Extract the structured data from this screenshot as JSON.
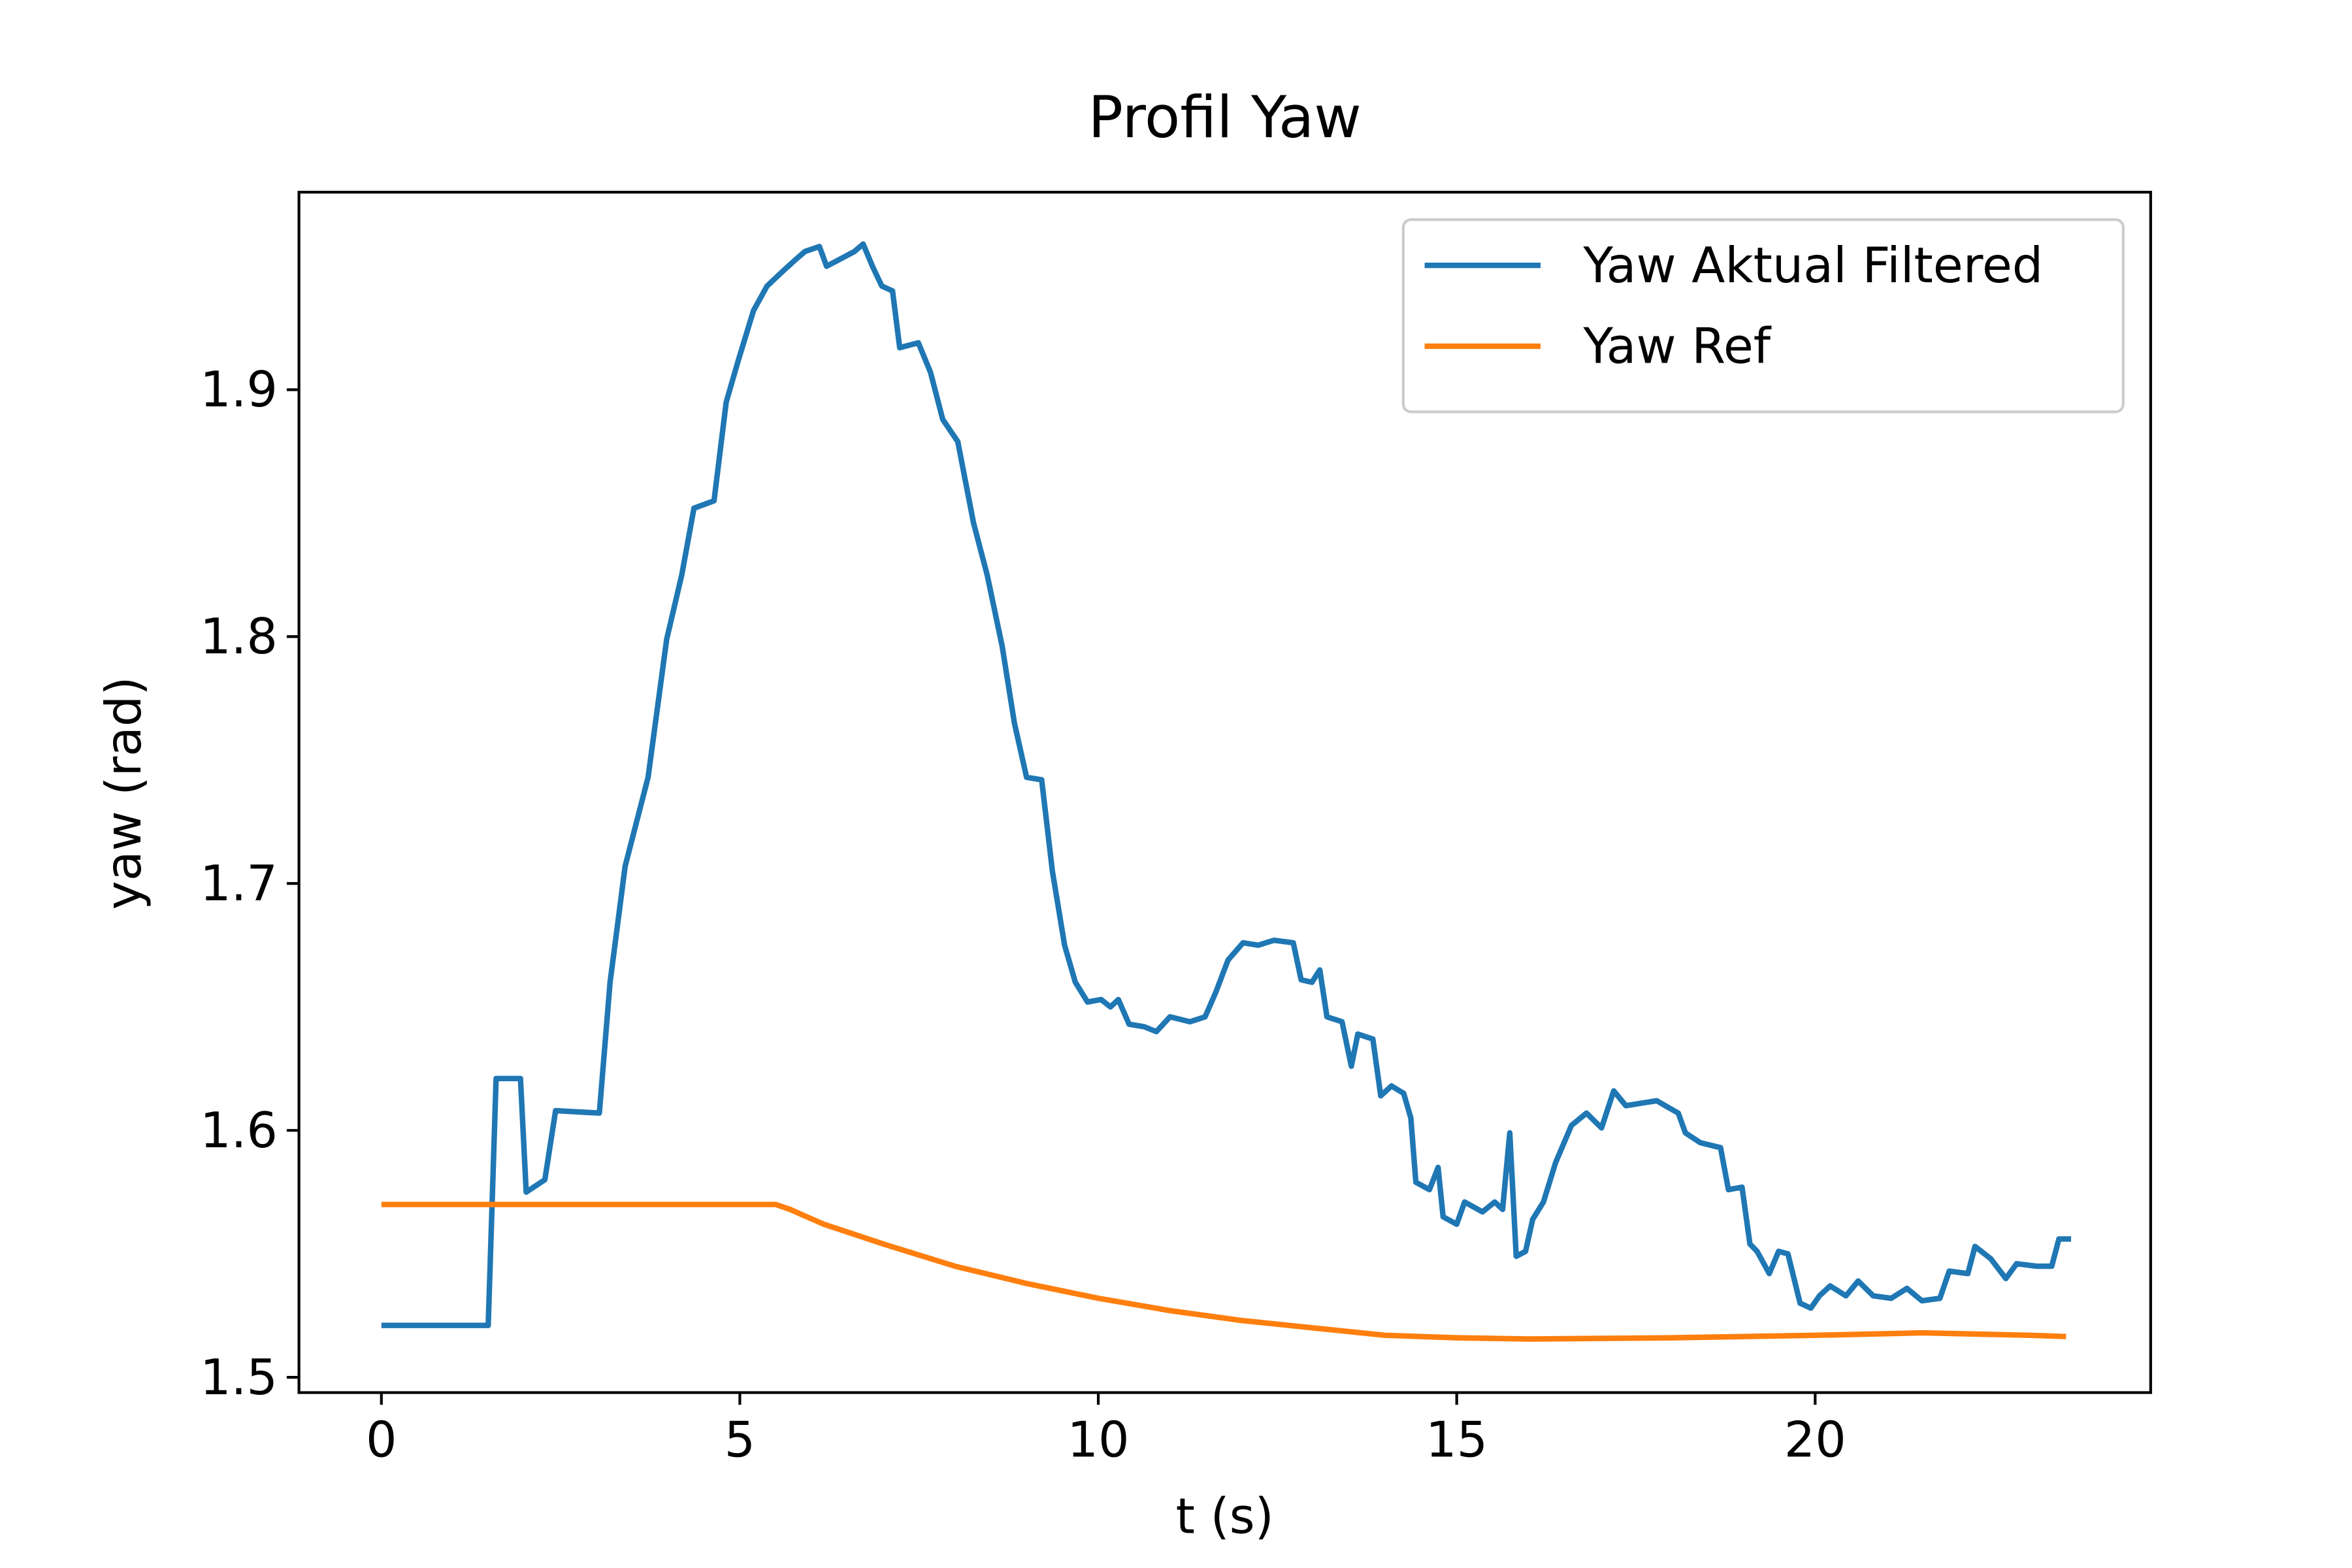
{
  "chart_data": {
    "type": "line",
    "title": "Profil Yaw",
    "xlabel": "t (s)",
    "ylabel": "yaw (rad)",
    "xlim": [
      -1.15,
      24.68
    ],
    "ylim": [
      1.4938,
      1.98
    ],
    "xticks": [
      0,
      5,
      10,
      15,
      20
    ],
    "yticks": [
      1.5,
      1.6,
      1.7,
      1.8,
      1.9
    ],
    "legend": "upper right",
    "series": [
      {
        "name": "Yaw Aktual Filtered",
        "color": "#1f77b4",
        "x": [
          0,
          1.49,
          1.6,
          1.94,
          2.02,
          2.28,
          2.43,
          3.04,
          3.19,
          3.4,
          3.72,
          3.98,
          4.19,
          4.36,
          4.64,
          4.81,
          4.98,
          5.19,
          5.38,
          5.6,
          5.79,
          5.91,
          6.11,
          6.21,
          6.6,
          6.72,
          6.85,
          6.98,
          7.13,
          7.23,
          7.49,
          7.66,
          7.83,
          8.04,
          8.26,
          8.45,
          8.66,
          8.83,
          9.0,
          9.21,
          9.36,
          9.53,
          9.68,
          9.85,
          10.04,
          10.17,
          10.28,
          10.43,
          10.64,
          10.81,
          11.0,
          11.28,
          11.49,
          11.64,
          11.81,
          12.02,
          12.23,
          12.45,
          12.72,
          12.83,
          12.98,
          13.09,
          13.19,
          13.4,
          13.53,
          13.62,
          13.83,
          13.94,
          14.09,
          14.26,
          14.36,
          14.43,
          14.62,
          14.74,
          14.81,
          15.0,
          15.11,
          15.36,
          15.53,
          15.64,
          15.74,
          15.83,
          15.96,
          16.06,
          16.21,
          16.38,
          16.6,
          16.81,
          17.02,
          17.19,
          17.36,
          17.57,
          17.79,
          18.09,
          18.19,
          18.4,
          18.68,
          18.79,
          18.98,
          19.09,
          19.19,
          19.36,
          19.49,
          19.62,
          19.79,
          19.94,
          20.06,
          20.21,
          20.43,
          20.6,
          20.81,
          21.06,
          21.28,
          21.49,
          21.74,
          21.87,
          22.13,
          22.23,
          22.45,
          22.66,
          22.81,
          23.09,
          23.3,
          23.4,
          23.57
        ],
        "values": [
          1.521,
          1.521,
          1.621,
          1.621,
          1.575,
          1.58,
          1.608,
          1.607,
          1.66,
          1.707,
          1.743,
          1.799,
          1.825,
          1.852,
          1.855,
          1.895,
          1.912,
          1.932,
          1.942,
          1.948,
          1.953,
          1.956,
          1.958,
          1.95,
          1.956,
          1.959,
          1.95,
          1.942,
          1.94,
          1.917,
          1.919,
          1.907,
          1.888,
          1.879,
          1.846,
          1.825,
          1.796,
          1.765,
          1.743,
          1.742,
          1.705,
          1.675,
          1.66,
          1.652,
          1.653,
          1.65,
          1.653,
          1.643,
          1.642,
          1.64,
          1.646,
          1.644,
          1.646,
          1.656,
          1.669,
          1.676,
          1.675,
          1.677,
          1.676,
          1.661,
          1.66,
          1.665,
          1.646,
          1.644,
          1.626,
          1.639,
          1.637,
          1.614,
          1.618,
          1.615,
          1.605,
          1.579,
          1.576,
          1.585,
          1.565,
          1.562,
          1.571,
          1.567,
          1.571,
          1.568,
          1.599,
          1.549,
          1.551,
          1.564,
          1.571,
          1.587,
          1.602,
          1.607,
          1.601,
          1.616,
          1.61,
          1.611,
          1.612,
          1.607,
          1.599,
          1.595,
          1.593,
          1.576,
          1.577,
          1.554,
          1.551,
          1.542,
          1.551,
          1.55,
          1.53,
          1.528,
          1.533,
          1.537,
          1.533,
          1.539,
          1.533,
          1.532,
          1.536,
          1.531,
          1.532,
          1.543,
          1.542,
          1.553,
          1.548,
          1.54,
          1.546,
          1.545,
          1.545,
          1.556,
          1.556
        ]
      },
      {
        "name": "Yaw Ref",
        "color": "#ff7f0e",
        "x": [
          0,
          5.5,
          5.7,
          6.17,
          7,
          8,
          9,
          10,
          11,
          12,
          13,
          14,
          15,
          16,
          18,
          20,
          21.5,
          23,
          23.5
        ],
        "values": [
          1.57,
          1.57,
          1.568,
          1.562,
          1.554,
          1.545,
          1.538,
          1.532,
          1.527,
          1.523,
          1.52,
          1.517,
          1.516,
          1.5155,
          1.516,
          1.517,
          1.518,
          1.517,
          1.5165
        ]
      }
    ]
  }
}
